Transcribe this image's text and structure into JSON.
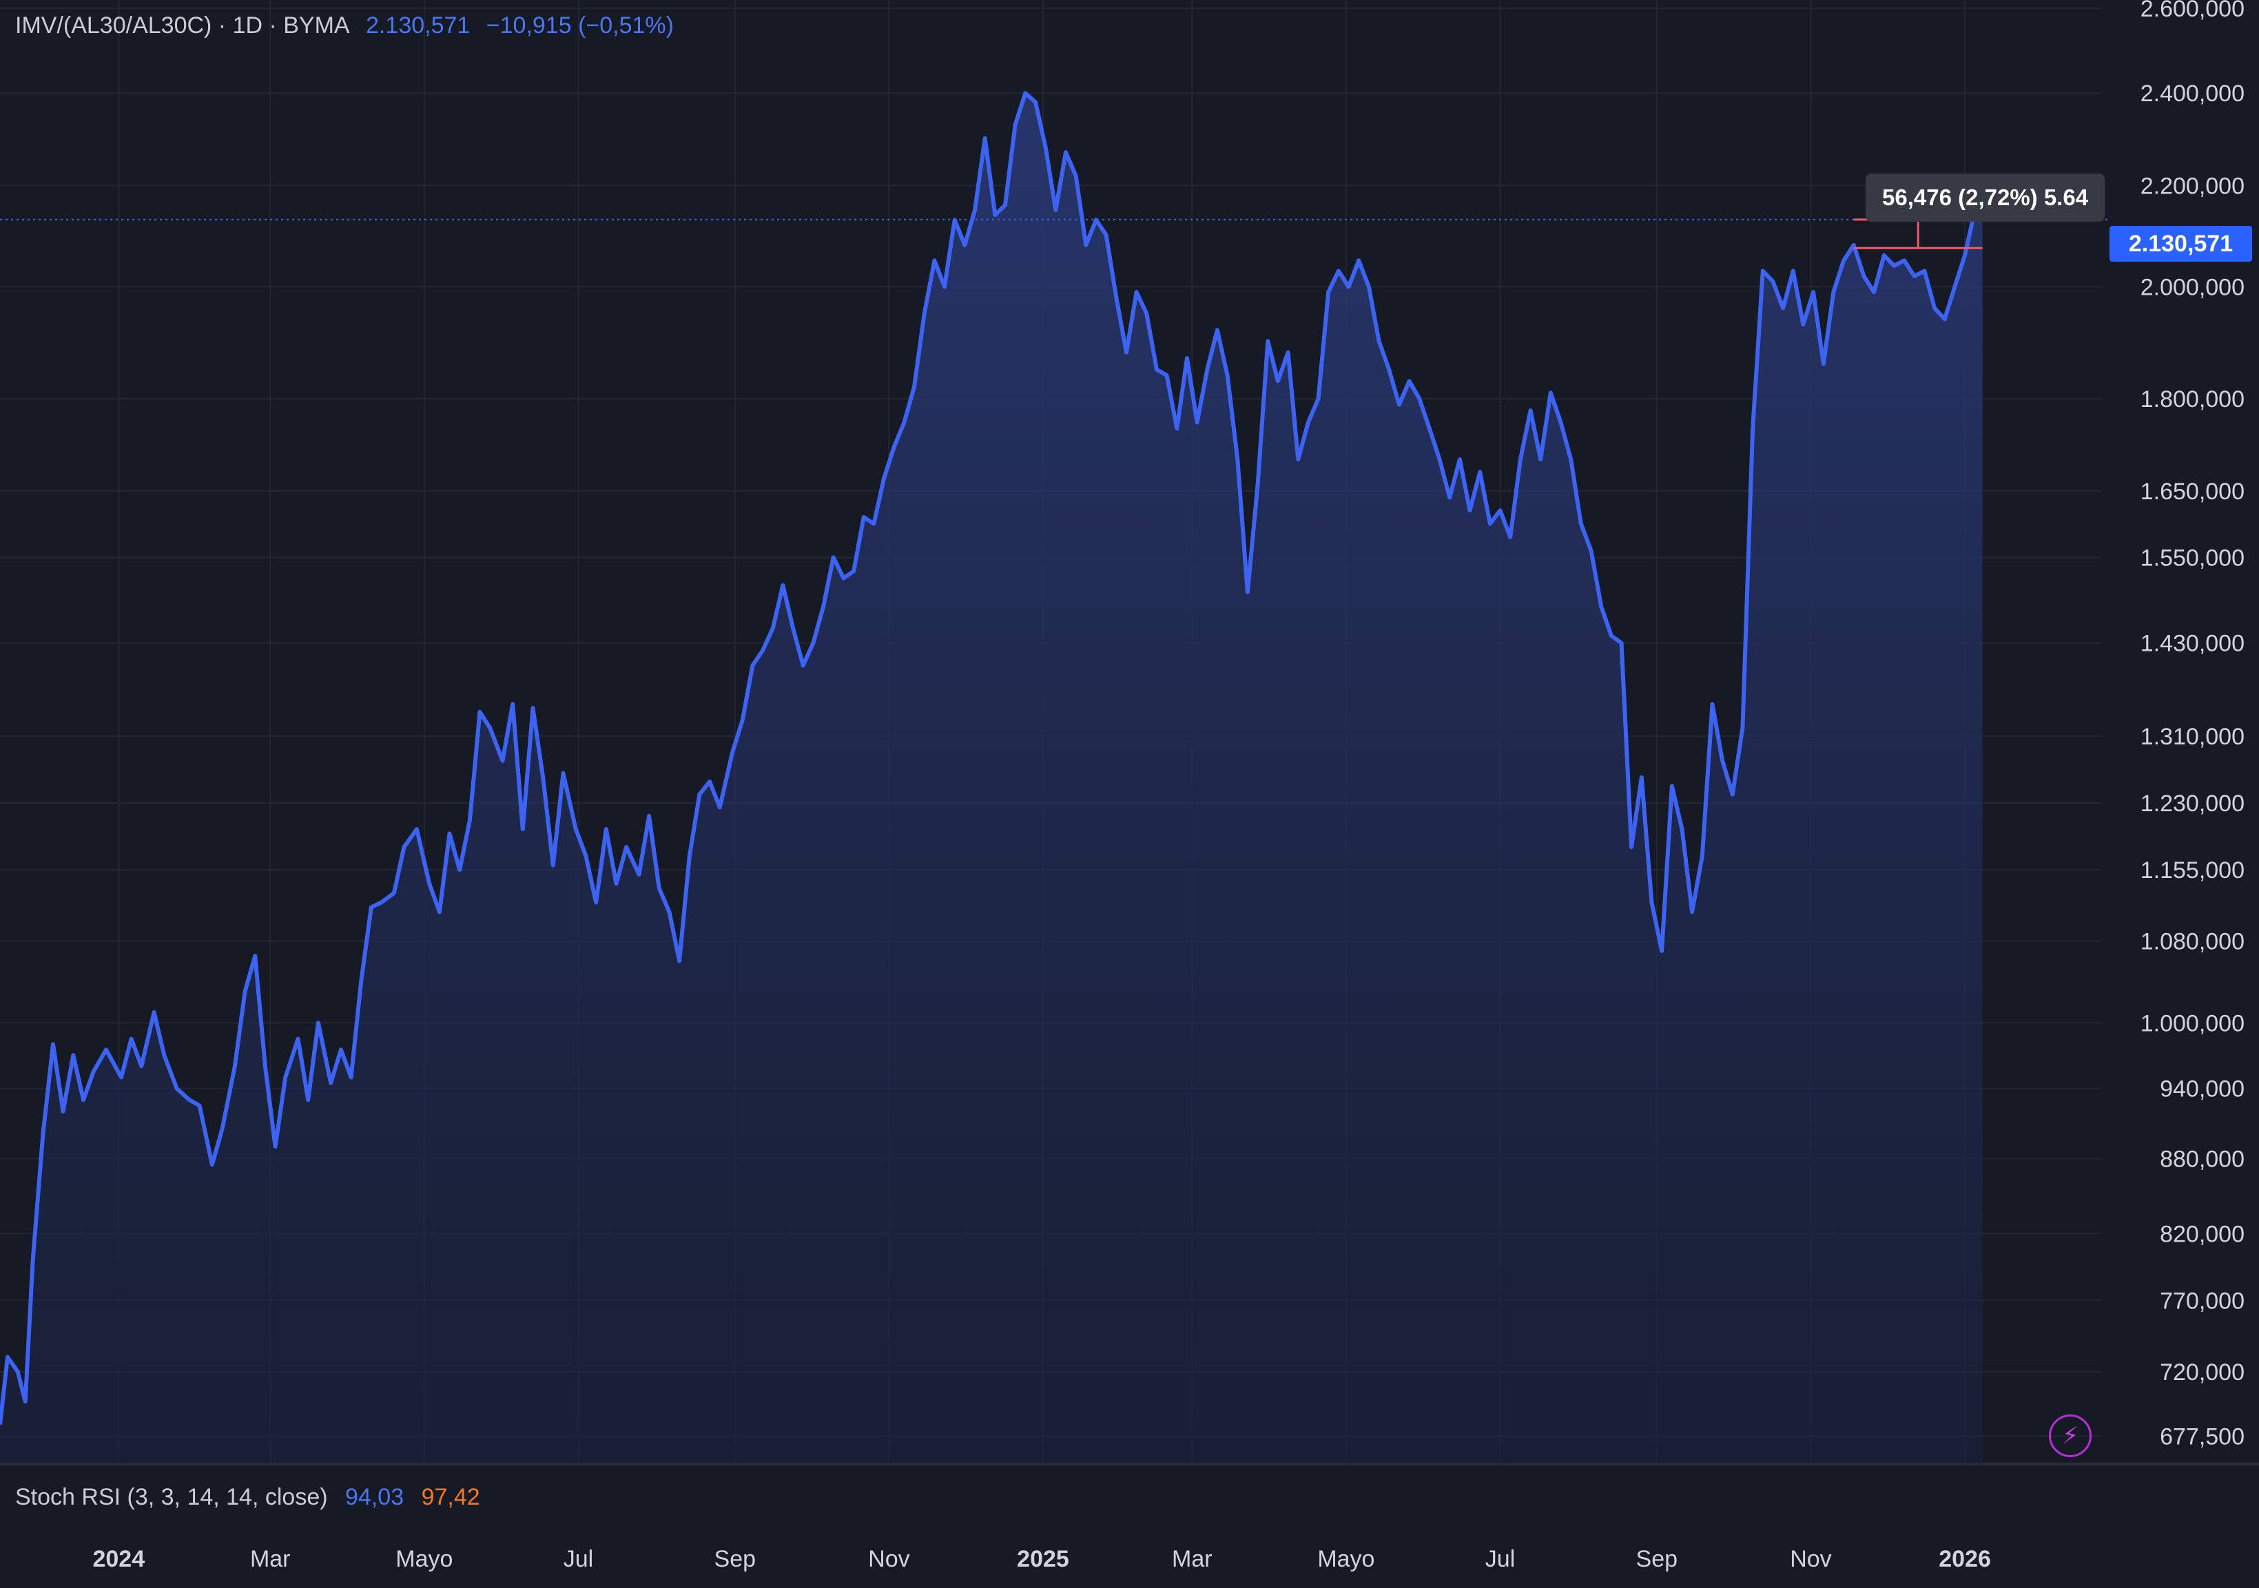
{
  "legend": {
    "symbol": "IMV/(AL30/AL30C) · 1D · BYMA",
    "last": "2.130,571",
    "change": "−10,915 (−0,51%)"
  },
  "indicator": {
    "name": "Stoch RSI (3, 3, 14, 14, close)",
    "k": "94,03",
    "d": "97,42"
  },
  "price_tag": "2.130,571",
  "measure_tooltip": "56,476 (2,72%) 5.64",
  "icons": {
    "lightning": "lightning-icon"
  },
  "colors": {
    "background": "#161a25",
    "line": "#3d63f3",
    "area_top": "#2a3a78",
    "grid": "#232734",
    "measure": "#f05b66",
    "price_tag": "#2962ff",
    "stoch_k": "#4b76f2",
    "stoch_d": "#f7781f"
  },
  "chart_data": {
    "type": "area",
    "title": "IMV/(AL30/AL30C) · 1D · BYMA",
    "y_scale": "log",
    "ylim": [
      660000,
      2620000
    ],
    "y_ticks": [
      2600000,
      2400000,
      2200000,
      2000000,
      1800000,
      1650000,
      1550000,
      1430000,
      1310000,
      1230000,
      1155000,
      1080000,
      1000000,
      940000,
      880000,
      820000,
      770000,
      720000,
      677500
    ],
    "y_tick_labels": [
      "2.600,000",
      "2.400,000",
      "2.200,000",
      "2.000,000",
      "1.800,000",
      "1.650,000",
      "1.550,000",
      "1.430,000",
      "1.310,000",
      "1.230,000",
      "1.155,000",
      "1.080,000",
      "1.000,000",
      "940,000",
      "880,000",
      "820,000",
      "770,000",
      "720,000",
      "677,500"
    ],
    "x_range": [
      "2023-11-15",
      "2026-02-24"
    ],
    "x_ticks": [
      {
        "date": "2024-01-01",
        "label": "2024",
        "bold": true
      },
      {
        "date": "2024-03-01",
        "label": "Mar",
        "bold": false
      },
      {
        "date": "2024-05-01",
        "label": "Mayo",
        "bold": false
      },
      {
        "date": "2024-07-01",
        "label": "Jul",
        "bold": false
      },
      {
        "date": "2024-09-01",
        "label": "Sep",
        "bold": false
      },
      {
        "date": "2024-11-01",
        "label": "Nov",
        "bold": false
      },
      {
        "date": "2025-01-01",
        "label": "2025",
        "bold": true
      },
      {
        "date": "2025-03-01",
        "label": "Mar",
        "bold": false
      },
      {
        "date": "2025-05-01",
        "label": "Mayo",
        "bold": false
      },
      {
        "date": "2025-07-01",
        "label": "Jul",
        "bold": false
      },
      {
        "date": "2025-09-01",
        "label": "Sep",
        "bold": false
      },
      {
        "date": "2025-11-01",
        "label": "Nov",
        "bold": false
      },
      {
        "date": "2026-01-01",
        "label": "2026",
        "bold": true
      }
    ],
    "grid": true,
    "last_value": 2130571,
    "series": [
      {
        "points": [
          [
            "2023-11-15",
            685000
          ],
          [
            "2023-11-18",
            730000
          ],
          [
            "2023-11-22",
            720000
          ],
          [
            "2023-11-25",
            700000
          ],
          [
            "2023-11-28",
            800000
          ],
          [
            "2023-12-02",
            900000
          ],
          [
            "2023-12-06",
            980000
          ],
          [
            "2023-12-10",
            920000
          ],
          [
            "2023-12-14",
            970000
          ],
          [
            "2023-12-18",
            930000
          ],
          [
            "2023-12-22",
            955000
          ],
          [
            "2023-12-27",
            975000
          ],
          [
            "2024-01-02",
            950000
          ],
          [
            "2024-01-06",
            985000
          ],
          [
            "2024-01-10",
            960000
          ],
          [
            "2024-01-15",
            1010000
          ],
          [
            "2024-01-19",
            970000
          ],
          [
            "2024-01-24",
            940000
          ],
          [
            "2024-01-29",
            930000
          ],
          [
            "2024-02-02",
            925000
          ],
          [
            "2024-02-07",
            875000
          ],
          [
            "2024-02-11",
            905000
          ],
          [
            "2024-02-16",
            960000
          ],
          [
            "2024-02-20",
            1030000
          ],
          [
            "2024-02-24",
            1065000
          ],
          [
            "2024-02-28",
            960000
          ],
          [
            "2024-03-03",
            890000
          ],
          [
            "2024-03-07",
            950000
          ],
          [
            "2024-03-12",
            985000
          ],
          [
            "2024-03-16",
            930000
          ],
          [
            "2024-03-20",
            1000000
          ],
          [
            "2024-03-25",
            945000
          ],
          [
            "2024-03-29",
            975000
          ],
          [
            "2024-04-02",
            950000
          ],
          [
            "2024-04-06",
            1040000
          ],
          [
            "2024-04-10",
            1115000
          ],
          [
            "2024-04-14",
            1120000
          ],
          [
            "2024-04-19",
            1130000
          ],
          [
            "2024-04-23",
            1180000
          ],
          [
            "2024-04-28",
            1200000
          ],
          [
            "2024-05-03",
            1140000
          ],
          [
            "2024-05-07",
            1110000
          ],
          [
            "2024-05-11",
            1195000
          ],
          [
            "2024-05-15",
            1155000
          ],
          [
            "2024-05-19",
            1210000
          ],
          [
            "2024-05-23",
            1340000
          ],
          [
            "2024-05-27",
            1320000
          ],
          [
            "2024-06-01",
            1280000
          ],
          [
            "2024-06-05",
            1350000
          ],
          [
            "2024-06-09",
            1200000
          ],
          [
            "2024-06-13",
            1345000
          ],
          [
            "2024-06-17",
            1260000
          ],
          [
            "2024-06-21",
            1160000
          ],
          [
            "2024-06-25",
            1265000
          ],
          [
            "2024-06-30",
            1200000
          ],
          [
            "2024-07-04",
            1170000
          ],
          [
            "2024-07-08",
            1120000
          ],
          [
            "2024-07-12",
            1200000
          ],
          [
            "2024-07-16",
            1140000
          ],
          [
            "2024-07-20",
            1180000
          ],
          [
            "2024-07-25",
            1150000
          ],
          [
            "2024-07-29",
            1215000
          ],
          [
            "2024-08-02",
            1135000
          ],
          [
            "2024-08-06",
            1110000
          ],
          [
            "2024-08-10",
            1060000
          ],
          [
            "2024-08-14",
            1170000
          ],
          [
            "2024-08-18",
            1240000
          ],
          [
            "2024-08-22",
            1255000
          ],
          [
            "2024-08-26",
            1225000
          ],
          [
            "2024-08-31",
            1290000
          ],
          [
            "2024-09-04",
            1330000
          ],
          [
            "2024-09-08",
            1400000
          ],
          [
            "2024-09-12",
            1420000
          ],
          [
            "2024-09-16",
            1450000
          ],
          [
            "2024-09-20",
            1510000
          ],
          [
            "2024-09-24",
            1450000
          ],
          [
            "2024-09-28",
            1400000
          ],
          [
            "2024-10-02",
            1430000
          ],
          [
            "2024-10-06",
            1480000
          ],
          [
            "2024-10-10",
            1550000
          ],
          [
            "2024-10-14",
            1520000
          ],
          [
            "2024-10-18",
            1530000
          ],
          [
            "2024-10-22",
            1610000
          ],
          [
            "2024-10-26",
            1600000
          ],
          [
            "2024-10-30",
            1670000
          ],
          [
            "2024-11-03",
            1720000
          ],
          [
            "2024-11-07",
            1760000
          ],
          [
            "2024-11-11",
            1820000
          ],
          [
            "2024-11-15",
            1950000
          ],
          [
            "2024-11-19",
            2050000
          ],
          [
            "2024-11-23",
            2000000
          ],
          [
            "2024-11-27",
            2130000
          ],
          [
            "2024-12-01",
            2080000
          ],
          [
            "2024-12-05",
            2150000
          ],
          [
            "2024-12-09",
            2300000
          ],
          [
            "2024-12-13",
            2140000
          ],
          [
            "2024-12-17",
            2160000
          ],
          [
            "2024-12-21",
            2330000
          ],
          [
            "2024-12-25",
            2400000
          ],
          [
            "2024-12-29",
            2380000
          ],
          [
            "2025-01-02",
            2280000
          ],
          [
            "2025-01-06",
            2150000
          ],
          [
            "2025-01-10",
            2270000
          ],
          [
            "2025-01-14",
            2220000
          ],
          [
            "2025-01-18",
            2080000
          ],
          [
            "2025-01-22",
            2130000
          ],
          [
            "2025-01-26",
            2100000
          ],
          [
            "2025-01-30",
            1980000
          ],
          [
            "2025-02-03",
            1880000
          ],
          [
            "2025-02-07",
            1990000
          ],
          [
            "2025-02-11",
            1950000
          ],
          [
            "2025-02-15",
            1850000
          ],
          [
            "2025-02-19",
            1840000
          ],
          [
            "2025-02-23",
            1750000
          ],
          [
            "2025-02-27",
            1870000
          ],
          [
            "2025-03-03",
            1760000
          ],
          [
            "2025-03-07",
            1850000
          ],
          [
            "2025-03-11",
            1920000
          ],
          [
            "2025-03-15",
            1840000
          ],
          [
            "2025-03-19",
            1700000
          ],
          [
            "2025-03-23",
            1500000
          ],
          [
            "2025-03-27",
            1660000
          ],
          [
            "2025-03-31",
            1900000
          ],
          [
            "2025-04-04",
            1830000
          ],
          [
            "2025-04-08",
            1880000
          ],
          [
            "2025-04-12",
            1700000
          ],
          [
            "2025-04-16",
            1760000
          ],
          [
            "2025-04-20",
            1800000
          ],
          [
            "2025-04-24",
            1990000
          ],
          [
            "2025-04-28",
            2030000
          ],
          [
            "2025-05-02",
            2000000
          ],
          [
            "2025-05-06",
            2050000
          ],
          [
            "2025-05-10",
            2000000
          ],
          [
            "2025-05-14",
            1900000
          ],
          [
            "2025-05-18",
            1850000
          ],
          [
            "2025-05-22",
            1790000
          ],
          [
            "2025-05-26",
            1830000
          ],
          [
            "2025-05-30",
            1800000
          ],
          [
            "2025-06-03",
            1750000
          ],
          [
            "2025-06-07",
            1700000
          ],
          [
            "2025-06-11",
            1640000
          ],
          [
            "2025-06-15",
            1700000
          ],
          [
            "2025-06-19",
            1620000
          ],
          [
            "2025-06-23",
            1680000
          ],
          [
            "2025-06-27",
            1600000
          ],
          [
            "2025-07-01",
            1620000
          ],
          [
            "2025-07-05",
            1580000
          ],
          [
            "2025-07-09",
            1700000
          ],
          [
            "2025-07-13",
            1780000
          ],
          [
            "2025-07-17",
            1700000
          ],
          [
            "2025-07-21",
            1810000
          ],
          [
            "2025-07-25",
            1760000
          ],
          [
            "2025-07-29",
            1700000
          ],
          [
            "2025-08-02",
            1600000
          ],
          [
            "2025-08-06",
            1560000
          ],
          [
            "2025-08-10",
            1480000
          ],
          [
            "2025-08-14",
            1440000
          ],
          [
            "2025-08-18",
            1430000
          ],
          [
            "2025-08-22",
            1180000
          ],
          [
            "2025-08-26",
            1260000
          ],
          [
            "2025-08-30",
            1120000
          ],
          [
            "2025-09-03",
            1070000
          ],
          [
            "2025-09-07",
            1250000
          ],
          [
            "2025-09-11",
            1200000
          ],
          [
            "2025-09-15",
            1110000
          ],
          [
            "2025-09-19",
            1170000
          ],
          [
            "2025-09-23",
            1350000
          ],
          [
            "2025-09-27",
            1280000
          ],
          [
            "2025-10-01",
            1240000
          ],
          [
            "2025-10-05",
            1320000
          ],
          [
            "2025-10-09",
            1750000
          ],
          [
            "2025-10-13",
            2030000
          ],
          [
            "2025-10-17",
            2010000
          ],
          [
            "2025-10-21",
            1960000
          ],
          [
            "2025-10-25",
            2030000
          ],
          [
            "2025-10-29",
            1930000
          ],
          [
            "2025-11-02",
            1990000
          ],
          [
            "2025-11-06",
            1860000
          ],
          [
            "2025-11-10",
            1990000
          ],
          [
            "2025-11-14",
            2050000
          ],
          [
            "2025-11-18",
            2080000
          ],
          [
            "2025-11-22",
            2020000
          ],
          [
            "2025-11-26",
            1990000
          ],
          [
            "2025-11-30",
            2060000
          ],
          [
            "2025-12-04",
            2040000
          ],
          [
            "2025-12-08",
            2050000
          ],
          [
            "2025-12-12",
            2020000
          ],
          [
            "2025-12-16",
            2030000
          ],
          [
            "2025-12-20",
            1960000
          ],
          [
            "2025-12-24",
            1940000
          ],
          [
            "2025-12-28",
            2000000
          ],
          [
            "2026-01-01",
            2060000
          ],
          [
            "2026-01-05",
            2150000
          ],
          [
            "2026-01-08",
            2130571
          ]
        ]
      }
    ],
    "measurement": {
      "from_date": "2025-11-18",
      "to_date": "2026-01-08",
      "from_value": 2074095,
      "to_value": 2130571,
      "label": "56,476 (2,72%) 5.64"
    }
  }
}
